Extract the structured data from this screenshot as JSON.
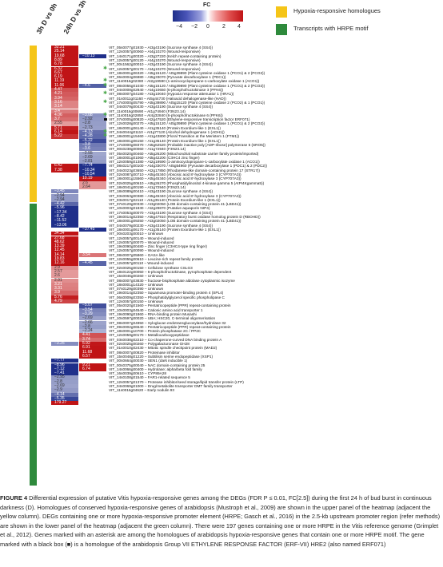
{
  "columns": [
    "3h D vs 0h",
    "24h D vs 3h D"
  ],
  "colorbar": {
    "title": "FC",
    "ticks": [
      "−4",
      "−2",
      "0",
      "2",
      "4"
    ]
  },
  "legend": [
    {
      "label": "Hypoxia-responsive homologues",
      "color": "#f5c518"
    },
    {
      "label": "Transcripts with HRPE motif",
      "color": "#2e8a3c"
    }
  ],
  "groups": {
    "yellow_rows": 37,
    "green_rows": 67
  },
  "rows": [
    {
      "a": "32.21",
      "b": "",
      "gene": "VIT_05s0077g01930 – At3g43190 (Sucrose synthase 4 (SS4))",
      "m": ""
    },
    {
      "a": "25.14",
      "b": "",
      "gene": "VIT_12s0057g00060 – At4g10270 (Wound-responsive)",
      "m": ""
    },
    {
      "a": "19.68",
      "b": "−10.13",
      "gene": "VIT_14s0171g00320 – At3g27220 (Kelch repeat-containing protein)",
      "m": ""
    },
    {
      "a": "8.89",
      "b": "",
      "gene": "VIT_12s0057g00120 – At4g10270 (Wound-responsive)",
      "m": ""
    },
    {
      "a": "6.78",
      "b": "",
      "gene": "VIT_00s1562g00010 – At3g43190 (Sucrose synthase 4 (SS4))",
      "m": ""
    },
    {
      "a": "6.32",
      "b": "",
      "gene": "VIT_12s0057g00170 – At4g10270 (Wound-responsive)",
      "m": "star"
    },
    {
      "a": "6.67",
      "b": "",
      "gene": "VIT_18s0001g06320 – At5g15120 / At5g39890 (Plant cysteine oxidase 1 (PCO1) & 2 (PCO2))",
      "m": ""
    },
    {
      "a": "6.19",
      "b": "",
      "gene": "VIT_06s0004g06980 – At5g33070 (Pyruvate decarboxylase 1 (PDC1))",
      "m": ""
    },
    {
      "a": "11.19",
      "b": "",
      "gene": "VIT_11s0016g02380 – At2g19590 (1-aminocyclopropane-1-carboxylate oxidase 1 (ACO1))",
      "m": "star"
    },
    {
      "a": "11.06",
      "b": "−4.6",
      "gene": "VIT_08s0056g01030 – At5g15120 / At5g39890 (Plant cysteine oxidase 1 (PCO1) & 2 (PCO2))",
      "m": "star"
    },
    {
      "a": "4.47",
      "b": "",
      "gene": "VIT_04s0008g02840 – At4g10650 (6-phosphofructokinase 3 (PFK6))",
      "m": ""
    },
    {
      "a": "4.21",
      "b": "",
      "gene": "VIT_08s0007g04180 – At3g10040 (Hypoxia response attenuator 1 (HRA1))",
      "m": "star"
    },
    {
      "a": "3.94",
      "b": "",
      "gene": "VIT_01s0011g01160 – At5g44730 (Haloacid dehalogenase-like (HAD))",
      "m": ""
    },
    {
      "a": "3.16",
      "b": "",
      "gene": "VIT_17s0000g05790 – At5g39890 / At5g15120 (Plant cysteine oxidase 2 (PCO2) & 1 (PCO1))",
      "m": "star"
    },
    {
      "a": "3.14",
      "b": "",
      "gene": "VIT_04s0079g00430 – At3g43190 (Sucrose synthase 4 (SS4))",
      "m": ""
    },
    {
      "a": "3.4",
      "b": "",
      "gene": "VIT_11s0016g00690 – At1g74940 (F3N23.14)",
      "m": ""
    },
    {
      "a": "4.06",
      "b": "−3.08",
      "gene": "VIT_11s0016g02850 – At4g32840 (6-phosphofructokinase 6 (PFK6))",
      "m": "star"
    },
    {
      "a": "3.7",
      "b": "−2.92",
      "gene": "VIT_07s0005g00820 – At2g47520 (Ethylene-responsive transcription factor ERF071)",
      "m": "box"
    },
    {
      "a": "2.55",
      "b": "−2.8",
      "gene": "VIT_12s0028g00270 – At5g15120 / At5g39890 (Plant cysteine oxidase 1 (PCO1) & 2 (PCO2))",
      "m": ""
    },
    {
      "a": "5.71",
      "b": "−2.73",
      "gene": "VIT_18s0001g06140 – At1g35140 (Protein Exordium-like 1 (EXL1))",
      "m": ""
    },
    {
      "a": "6.14",
      "b": "−4.13",
      "gene": "VIT_04s0044g01110 – At1g77120 (Alcohol dehydrogenase 1 (ADH1))",
      "m": "star"
    },
    {
      "a": "5.22",
      "b": "−4.28",
      "gene": "VIT_18s0001g15460 – At1g43800 (Floral Transition at the Meristem 1 (FTM1))",
      "m": "star"
    },
    {
      "a": "",
      "b": "−5.22",
      "gene": "VIT_18s0001g06150 – At1g35140 (Protein Exordium-like 1 (EXL1))",
      "m": ""
    },
    {
      "a": "",
      "b": "−3.8",
      "gene": "VIT_17s0000g08370 – At5g62520 (Probable inactive poly [ADP-ribose] polymerase 5 (SRO5))",
      "m": ""
    },
    {
      "a": "",
      "b": "−3.6",
      "gene": "VIT_00s0238g00060 – At1g72940 (F3N23.14)",
      "m": ""
    },
    {
      "a": "",
      "b": "−2.55",
      "gene": "VIT_05s0020g00460 – At5g26200 (Mitochondrial substrate carrier family protein/imported)",
      "m": ""
    },
    {
      "a": "",
      "b": "−2.69",
      "gene": "VIT_18s0001g01060 – At5g42200 (C3HC4 zinc finger)",
      "m": ""
    },
    {
      "a": "",
      "b": "−2.81",
      "gene": "VIT_12s0059g01380 – At2g19590 (1-aminocyclopropane-1-carboxylate oxidase 1 (ACO1))",
      "m": ""
    },
    {
      "a": "6.42",
      "b": "−7.74",
      "gene": "VIT_08s0217g00100 – At4g33070 / At5g54960 (Pyruvate decarboxylase 1 (PDC1) & 2 (PDC2))",
      "m": ""
    },
    {
      "a": "7.38",
      "b": "−10.34",
      "gene": "VIT_04s0023g03650 – At2g17850 (Rhodanese-like domain-containing protein 17 (STR17))",
      "m": ""
    },
    {
      "a": "",
      "b": "−10.54",
      "gene": "VIT_02s0087g00710 – At5g45340 (Abscisic acid 8'-hydroxylase 3 (CYP707A3))",
      "m": ""
    },
    {
      "a": "",
      "b": "10.19",
      "gene": "VIT_18s0001g15560 – At5g45340 (Abscisic acid 8'-hydroxylase 3 (CYP707A3))",
      "m": ""
    },
    {
      "a": "",
      "b": "2.6",
      "gene": "VIT_02s0025g00610 – At5g26270 (Phosphatidylinositol 4-kinase gamma 5 (AtPI4Kgamma5))",
      "m": ""
    },
    {
      "a": "",
      "b": "2.64",
      "gene": "VIT_18s0041g00190 – At1g72940 (F3N23.14)",
      "m": ""
    },
    {
      "a": "−3.45",
      "b": "",
      "gene": "VIT_18s0089g00410 – At3g43190 (Sucrose synthase 4 (SS4))",
      "m": ""
    },
    {
      "a": "−2.94",
      "b": "",
      "gene": "VIT_03s0063g00380 – At5g45340 (Abscisic acid 8'-hydroxylase 3 (CYP707A3))",
      "m": ""
    },
    {
      "a": "−2.94",
      "b": "",
      "gene": "VIT_03s0017g02110 – At1g35140 (Protein Exordium-like 1 (EXL1))",
      "m": ""
    },
    {
      "a": "−4.42",
      "b": "",
      "gene": "VIT_07s0129g00330 – At3g02050 (LOB domain-containing protein 41 (LBD41))",
      "m": ""
    },
    {
      "a": "−5.96",
      "b": "",
      "gene": "VIT_10s0003g01830 – At2g29870 (Putative aquaporin NIP4)",
      "m": ""
    },
    {
      "a": "−17.34",
      "b": "",
      "gene": "VIT_17s0053g00070 – At3g43190 (Sucrose synthase 4 (SS4))",
      "m": ""
    },
    {
      "a": "−8.42",
      "b": "",
      "gene": "VIT_19s0014g02350 – At5g47910 (Respiratory burst oxidase homolog protein D (RBOHD))",
      "m": ""
    },
    {
      "a": "−11.52",
      "b": "",
      "gene": "VIT_18s0001g09250 – At3g02050 (LOB domain-containing protein 41 (LBD41))",
      "m": ""
    },
    {
      "a": "−13.06",
      "b": "",
      "gene": "VIT_04s0079g00230 – At3g43190 (Sucrose synthase 4 (SS4))",
      "m": ""
    },
    {
      "a": "",
      "b": "−37.45",
      "gene": "VIT_18s0001g06170 – At1g35140 (Protein Exordium-like 1 (EXL1))",
      "m": ""
    },
    {
      "a": "34.34",
      "b": "",
      "gene": "VIT_00s0203g00010 – Unknown",
      "m": ""
    },
    {
      "a": "27.68",
      "b": "",
      "gene": "VIT_12s0057g00140 – Wound-induced",
      "m": ""
    },
    {
      "a": "48.62",
      "b": "",
      "gene": "VIT_12s0057g00070 – Wound-induced",
      "m": ""
    },
    {
      "a": "13.39",
      "b": "",
      "gene": "VIT_19s0090g00480 – Zinc finger (C3HC4-type ring finger)",
      "m": ""
    },
    {
      "a": "12.45",
      "b": "",
      "gene": "VIT_12s0057g00090 – Wound-induced",
      "m": ""
    },
    {
      "a": "14.14",
      "b": "3.54",
      "gene": "VIT_08s0007g05860 – GASA like",
      "m": ""
    },
    {
      "a": "19.83",
      "b": "",
      "gene": "VIT_12s0055g00610 – Leucine-rich repeat family protein",
      "m": ""
    },
    {
      "a": "12.16",
      "b": "−4.45",
      "gene": "VIT_12s0057g00110 – Wound-induced",
      "m": ""
    },
    {
      "a": "2.9",
      "b": "",
      "gene": "VIT_02s0025g00150 – Cellulose synthase CSLG3",
      "m": ""
    },
    {
      "a": "2.57",
      "b": "",
      "gene": "VIT_18s0122g00050 – 6-phosphofructokinase, pyrophosphate dependent",
      "m": ""
    },
    {
      "a": "2.6",
      "b": "",
      "gene": "VIT_15s0046g00260 – Unknown",
      "m": ""
    },
    {
      "a": "2.91",
      "b": "",
      "gene": "VIT_08s0007g03830 – fructose-bisphosphate aldolase cytoplasmic isozyme",
      "m": ""
    },
    {
      "a": "3.21",
      "b": "",
      "gene": "VIT_18s0001g14320 – Unknown",
      "m": ""
    },
    {
      "a": "3.31",
      "b": "",
      "gene": "VIT_07s0129g00390 – Unknown",
      "m": ""
    },
    {
      "a": "3.9",
      "b": "",
      "gene": "VIT_19s0014g02350 – Squamosa promoter-binding protein 4 (SPL4)",
      "m": ""
    },
    {
      "a": "5.76",
      "b": "",
      "gene": "VIT_06s0009g03350 – Phosphatidylglycerol specific phospholipase C",
      "m": ""
    },
    {
      "a": "4.79",
      "b": "",
      "gene": "VIT_12s0057g00150 – Unknown",
      "m": ""
    },
    {
      "a": "",
      "b": "−5.07",
      "gene": "VIT_05s0020g01560 – Pentatricopeptide (PPR) repeat-containing protein",
      "m": ""
    },
    {
      "a": "",
      "b": "−3.54",
      "gene": "VIT_10s0003g04540 – Cationic amino acid transporter 1",
      "m": ""
    },
    {
      "a": "",
      "b": "−3.29",
      "gene": "VIT_19s0090g01860 – RNA-binding protein Musashi",
      "m": ""
    },
    {
      "a": "",
      "b": "−2.69",
      "gene": "VIT_10s0597g00020 – UBA; HSC20, C-terminal oligomerisation",
      "m": ""
    },
    {
      "a": "",
      "b": "−2.66",
      "gene": "VIT_08s0007g04950 – Xyloglucan endotransglucosylase/hydrolase 32",
      "m": ""
    },
    {
      "a": "",
      "b": "−2.8",
      "gene": "VIT_09s0002g06540 – Pentatricopeptide (PPR) repeat-containing protein",
      "m": ""
    },
    {
      "a": "",
      "b": "−2.24",
      "gene": "VIT_18s0001g10700 – Protein phosphatase 2C / PP2C",
      "m": ""
    },
    {
      "a": "",
      "b": "4.41",
      "gene": "VIT_12s0059g00170 – Metallocarboxypeptidase",
      "m": ""
    },
    {
      "a": "",
      "b": "3.74",
      "gene": "VIT_03s0038g02210 – Co-chaperone-curved DNA binding protein A",
      "m": ""
    },
    {
      "a": "−3.25",
      "b": "5.92",
      "gene": "VIT_02s0025g00260 – Polygalacturonase GH28",
      "m": ""
    },
    {
      "a": "",
      "b": "6.91",
      "gene": "VIT_01s0010g02430 – Mitotic spindle checkpoint protein (MAD2)",
      "m": ""
    },
    {
      "a": "",
      "b": "11.68",
      "gene": "VIT_08s0007g00820 – Proteinase inhibitor",
      "m": ""
    },
    {
      "a": "",
      "b": "6.57",
      "gene": "VIT_15s0048g01220 – Subtilisin serine endopeptidase (XSP1)",
      "m": ""
    },
    {
      "a": "−7.77",
      "b": "",
      "gene": "VIT_00s0664g00030 – SEN1 (dark inducible 1)",
      "m": ""
    },
    {
      "a": "−8.96",
      "b": "9.21",
      "gene": "VIT_00s0375g00040 – NAC domain-containing protein 25",
      "m": ""
    },
    {
      "a": "−7.12",
      "b": "6.74",
      "gene": "VIT_14s0066g00400 – Hydrolase; alpha/beta fold family",
      "m": ""
    },
    {
      "a": "−7.41",
      "b": "",
      "gene": "VIT_16s0039g00610 – CYP89A28",
      "m": ""
    },
    {
      "a": "−2.95",
      "b": "",
      "gene": "VIT_14s0108g01540 – FAR1-related sequence 5",
      "m": ""
    },
    {
      "a": "−2.8",
      "b": "",
      "gene": "VIT_12s0057g01370 – Protease inhibitor/seed storage/lipid transfer protein (LTP)",
      "m": ""
    },
    {
      "a": "−2.69",
      "b": "",
      "gene": "VIT_04s0069g01000 – Drug/metabolite transporter DMT family transporter",
      "m": ""
    },
    {
      "a": "−2.9",
      "b": "",
      "gene": "VIT_11s0016g04620 – Early nodulin 93",
      "m": ""
    },
    {
      "a": "−4.14",
      "b": "",
      "gene": "",
      "m": ""
    },
    {
      "a": "−5.35",
      "b": "",
      "gene": "",
      "m": ""
    },
    {
      "a": "179.27",
      "b": "",
      "gene": "",
      "m": ""
    }
  ],
  "caption": {
    "label": "FIGURE 4",
    "text": "Differential expression of putative Vitis hypoxia-responsive genes among the DEGs (FDR P ≤ 0.01, FC[2.5]) during the first 24 h of bud burst in continuous darkness (D). Homologues of conserved hypoxia-responsive genes of arabidopsis (Mustroph et al., 2009) are shown in the upper panel of the heatmap (adjacent the yellow column). DEGs containing one or more hypoxia-responsive promoter element (HRPE; Gasch et al., 2016) in the 2.5-kb upstream promoter region (refer methods) are shown in the lower panel of the heatmap (adjacent the green column). There were 197 genes containing one or more HRPE in the Vitis reference genome (Grimplet et al., 2012). Genes marked with an asterisk are among the homologues of arabidopsis hypoxia-responsive genes that contain one or more HRPE motif. The gene marked with a black box (■) is a homologue of the arabidopsis Group VII ETHYLENE RESPONSE FACTOR (ERF-VII) HRE2 (also named ERF071)"
  }
}
